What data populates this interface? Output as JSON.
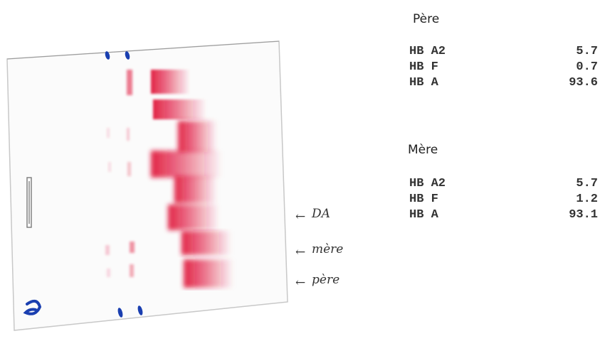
{
  "gel": {
    "annotations": [
      {
        "arrow": "←",
        "label": "DA"
      },
      {
        "arrow": "←",
        "label": "mère"
      },
      {
        "arrow": "←",
        "label": "père"
      }
    ]
  },
  "pere": {
    "title": "Père",
    "rows": [
      {
        "name": "HB A2",
        "value": "5.7"
      },
      {
        "name": "HB F",
        "value": "0.7"
      },
      {
        "name": "HB A",
        "value": "93.6"
      }
    ]
  },
  "mere": {
    "title": "Mère",
    "rows": [
      {
        "name": "HB A2",
        "value": "5.7"
      },
      {
        "name": "HB F",
        "value": "1.2"
      },
      {
        "name": "HB A",
        "value": "93.1"
      }
    ]
  },
  "colors": {
    "band": "#e0163c",
    "marker": "#1a3fb0"
  }
}
